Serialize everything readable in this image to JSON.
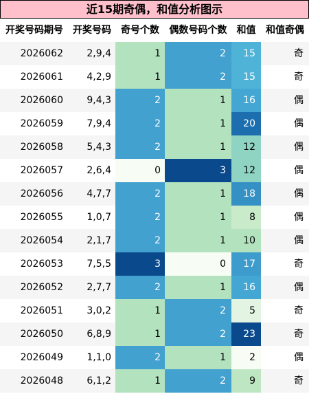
{
  "title": "近15期奇偶，和值分析图示",
  "headers": [
    "开奖号码期号",
    "开奖号码",
    "奇号个数",
    "偶数号码个数",
    "和值",
    "和值奇偶"
  ],
  "colors": {
    "title_bg": "#ffc0cb",
    "row_even_bg": "#f5f5f5",
    "row_odd_bg": "#ffffff",
    "odd_count_scale": {
      "0": "#f7fcf5",
      "1": "#b3e2bf",
      "2": "#42a1cf",
      "3": "#0a4a8c"
    },
    "even_count_scale": {
      "0": "#f7fcf5",
      "1": "#b3e2bf",
      "2": "#42a1cf",
      "3": "#0a4a8c"
    },
    "sum_scale": {
      "2": "#f7fcf5",
      "5": "#e4f4e3",
      "8": "#c9ebc9",
      "9": "#bfe6c3",
      "10": "#b3e2bf",
      "12": "#8fd3c3",
      "15": "#4fb3d8",
      "16": "#44a6d2",
      "17": "#3d9ccc",
      "18": "#3590c4",
      "20": "#1c6eaf",
      "23": "#0a4a8c"
    }
  },
  "rows": [
    {
      "period": "2026062",
      "numbers": "2,9,4",
      "odd": "1",
      "even": "2",
      "sum": "15",
      "parity": "奇"
    },
    {
      "period": "2026061",
      "numbers": "4,2,9",
      "odd": "1",
      "even": "2",
      "sum": "15",
      "parity": "奇"
    },
    {
      "period": "2026060",
      "numbers": "9,4,3",
      "odd": "2",
      "even": "1",
      "sum": "16",
      "parity": "偶"
    },
    {
      "period": "2026059",
      "numbers": "7,9,4",
      "odd": "2",
      "even": "1",
      "sum": "20",
      "parity": "偶"
    },
    {
      "period": "2026058",
      "numbers": "5,4,3",
      "odd": "2",
      "even": "1",
      "sum": "12",
      "parity": "偶"
    },
    {
      "period": "2026057",
      "numbers": "2,6,4",
      "odd": "0",
      "even": "3",
      "sum": "12",
      "parity": "偶"
    },
    {
      "period": "2026056",
      "numbers": "4,7,7",
      "odd": "2",
      "even": "1",
      "sum": "18",
      "parity": "偶"
    },
    {
      "period": "2026055",
      "numbers": "1,0,7",
      "odd": "2",
      "even": "1",
      "sum": "8",
      "parity": "偶"
    },
    {
      "period": "2026054",
      "numbers": "2,1,7",
      "odd": "2",
      "even": "1",
      "sum": "10",
      "parity": "偶"
    },
    {
      "period": "2026053",
      "numbers": "7,5,5",
      "odd": "3",
      "even": "0",
      "sum": "17",
      "parity": "奇"
    },
    {
      "period": "2026052",
      "numbers": "2,7,7",
      "odd": "2",
      "even": "1",
      "sum": "16",
      "parity": "偶"
    },
    {
      "period": "2026051",
      "numbers": "3,0,2",
      "odd": "1",
      "even": "2",
      "sum": "5",
      "parity": "奇"
    },
    {
      "period": "2026050",
      "numbers": "6,8,9",
      "odd": "1",
      "even": "2",
      "sum": "23",
      "parity": "奇"
    },
    {
      "period": "2026049",
      "numbers": "1,1,0",
      "odd": "2",
      "even": "1",
      "sum": "2",
      "parity": "偶"
    },
    {
      "period": "2026048",
      "numbers": "6,1,2",
      "odd": "1",
      "even": "2",
      "sum": "9",
      "parity": "奇"
    }
  ]
}
